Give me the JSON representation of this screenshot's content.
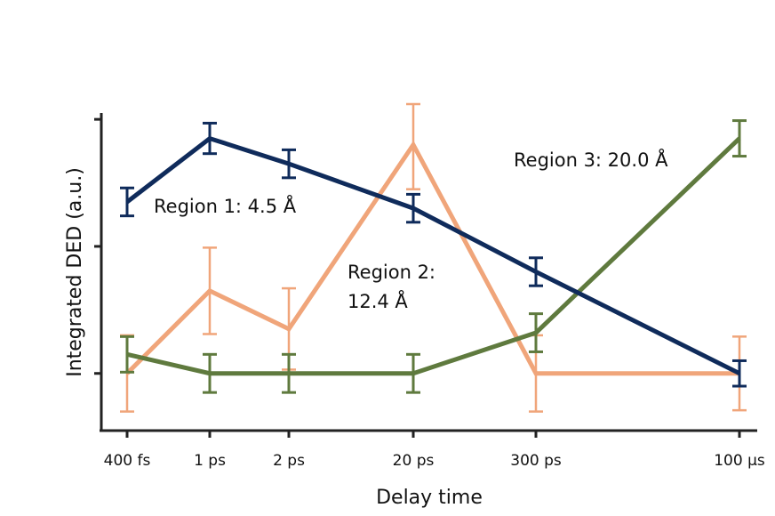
{
  "chart_data": {
    "type": "line",
    "xlabel": "Delay time",
    "ylabel": "Integrated DED (a.u.)",
    "categories": [
      "400 fs",
      "1 ps",
      "2 ps",
      "20 ps",
      "300 ps",
      "100 μs"
    ],
    "ylim": [
      -0.45,
      2.05
    ],
    "grid": false,
    "legend": "none",
    "series": [
      {
        "name": "Region 1: 4.5 Å",
        "color": "#0f2b5b",
        "values": [
          1.35,
          1.85,
          1.65,
          1.3,
          0.8,
          0.0
        ],
        "errors": [
          0.11,
          0.12,
          0.11,
          0.11,
          0.11,
          0.1
        ]
      },
      {
        "name": "Region 2: 12.4 Å",
        "color": "#f0a57a",
        "values": [
          0.0,
          0.65,
          0.35,
          1.8,
          0.0,
          0.0
        ],
        "errors": [
          0.3,
          0.34,
          0.32,
          0.35,
          0.3,
          0.29
        ]
      },
      {
        "name": "Region 3: 20.0 Å",
        "color": "#5f7a3e",
        "values": [
          0.15,
          0.0,
          0.0,
          0.0,
          0.32,
          1.85
        ],
        "errors": [
          0.14,
          0.15,
          0.15,
          0.15,
          0.15,
          0.14
        ]
      }
    ],
    "annotations": [
      {
        "text": "Region 1: 4.5 Å"
      },
      {
        "text": "Region 2:"
      },
      {
        "text": "12.4 Å"
      },
      {
        "text": "Region 3: 20.0 Å"
      }
    ]
  }
}
